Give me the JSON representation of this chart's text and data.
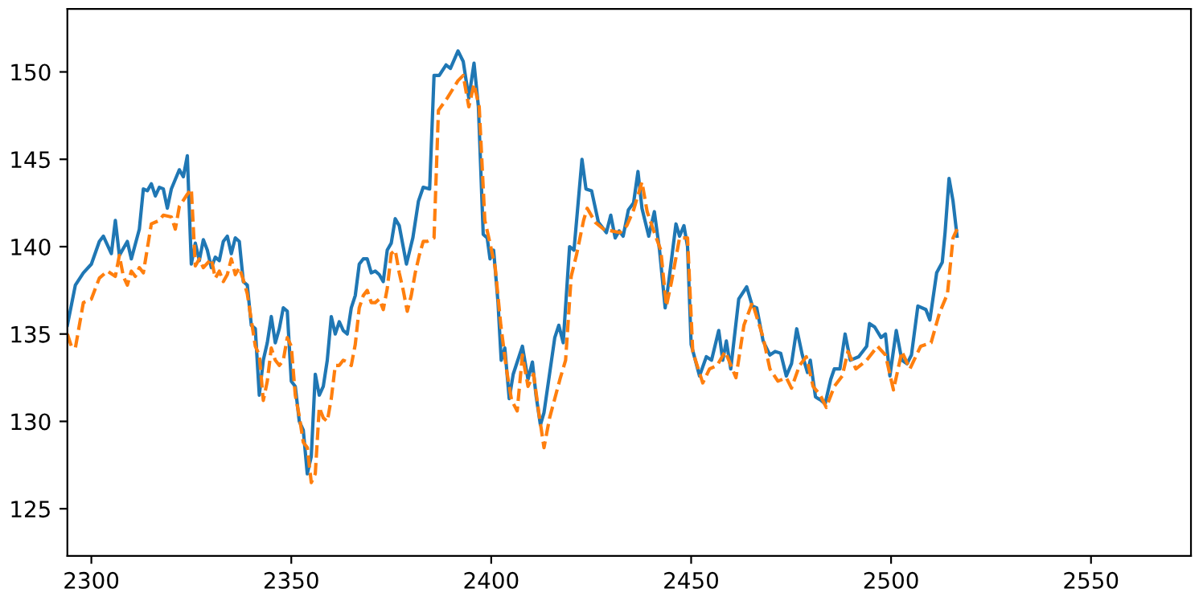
{
  "chart_data": {
    "type": "line",
    "xlim": [
      2294,
      2575
    ],
    "ylim": [
      122.3,
      153.6
    ],
    "xticks": [
      2300,
      2350,
      2400,
      2450,
      2500,
      2550
    ],
    "yticks": [
      125,
      130,
      135,
      140,
      145,
      150
    ],
    "grid": false,
    "marker": "none",
    "series": [
      {
        "color": "#1f77b4",
        "line_style": "solid",
        "x": [
          2294,
          2296,
          2298,
          2300,
          2302,
          2303,
          2305,
          2306,
          2307,
          2309,
          2310,
          2312,
          2313,
          2314,
          2315,
          2316,
          2317,
          2318,
          2319,
          2320,
          2322,
          2323,
          2324,
          2325,
          2326,
          2327,
          2328,
          2329,
          2330,
          2331,
          2332,
          2333,
          2334,
          2335,
          2336,
          2337,
          2338,
          2339,
          2340,
          2341,
          2342,
          2343,
          2344,
          2345,
          2346,
          2347,
          2348,
          2349,
          2350,
          2351,
          2352,
          2353,
          2354,
          2355,
          2356,
          2357,
          2358,
          2359,
          2360,
          2361,
          2362,
          2363,
          2364,
          2365,
          2366,
          2367,
          2368,
          2369,
          2370,
          2371,
          2372,
          2373,
          2374,
          2375,
          2376,
          2377,
          2378.8,
          2380.4,
          2381.8,
          2383,
          2384.6,
          2385.7,
          2387,
          2388.7,
          2389.8,
          2391.7,
          2393,
          2394.4,
          2395.7,
          2396.8,
          2398,
          2399,
          2399.7,
          2400.6,
          2401.7,
          2402.5,
          2403.4,
          2404.5,
          2405.5,
          2407.8,
          2409.2,
          2410.3,
          2411.2,
          2412.3,
          2413.2,
          2415.9,
          2416.9,
          2418,
          2419.6,
          2420.7,
          2422.7,
          2423.7,
          2425.1,
          2426.8,
          2428.8,
          2429.9,
          2431,
          2432,
          2433,
          2434.3,
          2435.6,
          2436.7,
          2437.7,
          2439.4,
          2440.8,
          2442.1,
          2443.5,
          2444.4,
          2446.2,
          2447.1,
          2448.2,
          2449.1,
          2450,
          2452.1,
          2453.8,
          2455.1,
          2456.9,
          2457.9,
          2458.8,
          2459.9,
          2461.9,
          2463.9,
          2465.3,
          2466.4,
          2468,
          2469.7,
          2471,
          2472.4,
          2473.8,
          2475.1,
          2476.4,
          2477.8,
          2479.1,
          2479.8,
          2481.1,
          2482.5,
          2483.5,
          2484.9,
          2485.8,
          2487.2,
          2488.5,
          2489.8,
          2491.9,
          2493.9,
          2494.6,
          2495.9,
          2497.5,
          2498.6,
          2499.7,
          2501.3,
          2502.7,
          2504,
          2505.1,
          2506.7,
          2508.7,
          2509.7,
          2511.4,
          2512.8,
          2513.5,
          2514.5,
          2515.5,
          2516.5
        ],
        "values": [
          135.5,
          137.8,
          138.5,
          139,
          140.3,
          140.6,
          139.6,
          141.5,
          139.5,
          140.3,
          139.3,
          141,
          143.3,
          143.2,
          143.6,
          142.9,
          143.4,
          143.3,
          142.2,
          143.3,
          144.4,
          144,
          145.2,
          139,
          140.2,
          139.2,
          140.4,
          139.8,
          138.8,
          139.4,
          139.2,
          140.3,
          140.6,
          139.6,
          140.5,
          140.3,
          138,
          137.8,
          135.5,
          135.3,
          131.5,
          133.5,
          134.5,
          136,
          134.5,
          135.3,
          136.5,
          136.3,
          132.3,
          132,
          130,
          129.5,
          127,
          128,
          132.7,
          131.5,
          132,
          133.5,
          136,
          135,
          135.7,
          135.2,
          135,
          136.5,
          137.2,
          139,
          139.3,
          139.3,
          138.5,
          138.6,
          138.4,
          138,
          139.8,
          140.2,
          141.6,
          141.2,
          139,
          140.5,
          142.6,
          143.4,
          143.3,
          149.8,
          149.8,
          150.4,
          150.2,
          151.2,
          150.6,
          148.5,
          150.5,
          148,
          140.7,
          140.5,
          139.3,
          139.8,
          136.8,
          133.5,
          134.2,
          131.3,
          132.7,
          134.3,
          132.4,
          133.4,
          131.5,
          129.8,
          130.5,
          134.8,
          135.5,
          134.5,
          140,
          139.8,
          145,
          143.3,
          143.2,
          141.4,
          140.8,
          141.8,
          140.5,
          140.9,
          140.6,
          142.1,
          142.5,
          144.3,
          142.2,
          140.6,
          142,
          139.8,
          136.5,
          138,
          141.3,
          140.6,
          141.2,
          140,
          134.4,
          132.6,
          133.7,
          133.5,
          135.2,
          133.5,
          134.6,
          133,
          137,
          137.7,
          136.6,
          136.5,
          134.6,
          133.8,
          134,
          133.9,
          132.6,
          133.3,
          135.3,
          133.8,
          132.8,
          133.5,
          131.4,
          131.2,
          131,
          132.4,
          133,
          133,
          135,
          133.5,
          133.7,
          134.3,
          135.6,
          135.4,
          134.8,
          135,
          132.6,
          135.2,
          133.5,
          133.3,
          133.8,
          136.6,
          136.4,
          135.8,
          138.5,
          139.1,
          140.8,
          143.9,
          142.6,
          140.6
        ]
      },
      {
        "color": "#ff7f0e",
        "line_style": "dashed",
        "x": [
          2294,
          2295,
          2296,
          2298,
          2300,
          2302,
          2304,
          2306,
          2307,
          2308,
          2309,
          2310,
          2311,
          2312,
          2313,
          2315,
          2317,
          2318,
          2320,
          2321,
          2322,
          2324,
          2325,
          2326,
          2327,
          2328,
          2330,
          2331,
          2332,
          2333,
          2334,
          2335,
          2336,
          2337,
          2338,
          2339,
          2341,
          2342,
          2343,
          2344,
          2345,
          2346,
          2347,
          2348,
          2349,
          2350,
          2351,
          2352,
          2353,
          2354,
          2355,
          2356,
          2357,
          2358,
          2359,
          2360,
          2361,
          2362,
          2363,
          2364,
          2365,
          2366,
          2367,
          2368,
          2369,
          2370,
          2371,
          2372,
          2373,
          2374,
          2375,
          2376,
          2377,
          2378,
          2379,
          2380,
          2381,
          2382,
          2383,
          2384,
          2385.7,
          2386.8,
          2389,
          2391.7,
          2393,
          2394.4,
          2395.7,
          2397,
          2398.4,
          2399.7,
          2401,
          2402.4,
          2403.8,
          2405.1,
          2406.5,
          2407.8,
          2409.2,
          2410.6,
          2411.9,
          2413.2,
          2414.6,
          2417.3,
          2418.6,
          2420,
          2421.3,
          2423.1,
          2424,
          2426,
          2428.1,
          2430.1,
          2432.2,
          2433.9,
          2435.6,
          2437.7,
          2439,
          2440.8,
          2442.4,
          2443.8,
          2445.1,
          2447.1,
          2449.1,
          2450.4,
          2452.9,
          2454.6,
          2456.5,
          2458.5,
          2461.2,
          2463.2,
          2465.3,
          2468,
          2469.7,
          2471.7,
          2473.8,
          2475.1,
          2477.1,
          2478.8,
          2480.5,
          2482.3,
          2483.8,
          2485.8,
          2487.8,
          2489.2,
          2491.2,
          2493.9,
          2496.6,
          2498.6,
          2500.6,
          2502.7,
          2504.7,
          2507.4,
          2510,
          2512.1,
          2514.1,
          2515.5,
          2516.5
        ],
        "values": [
          135,
          134.3,
          134.2,
          136.8,
          137,
          138.2,
          138.6,
          138.3,
          139.5,
          138.3,
          137.8,
          138.6,
          138.3,
          138.8,
          138.5,
          141.3,
          141.5,
          141.8,
          141.7,
          141,
          142.3,
          143,
          143.3,
          138.9,
          139.3,
          138.8,
          139.3,
          138.2,
          138.6,
          138,
          138.4,
          139.3,
          138.4,
          138.8,
          138.1,
          137.3,
          134.3,
          133.8,
          131.2,
          132.3,
          134.2,
          133.5,
          133.2,
          133.5,
          134.8,
          134.3,
          131.5,
          130.3,
          128.8,
          128.5,
          126.5,
          127,
          130.8,
          130.2,
          130,
          131.3,
          133.2,
          133.2,
          133.5,
          133.4,
          133.2,
          134.4,
          136.5,
          137.2,
          137.5,
          136.8,
          136.8,
          137,
          136.4,
          137.6,
          139.6,
          139.8,
          138.5,
          137.5,
          136.3,
          137.2,
          138.5,
          139.5,
          140.3,
          140.3,
          140.5,
          147.8,
          148.5,
          149.5,
          149.8,
          148,
          149.3,
          148,
          141.5,
          140.2,
          138.8,
          135.5,
          133,
          131.2,
          130.6,
          133.8,
          132,
          132.7,
          130.5,
          128.5,
          130.2,
          132.5,
          133.5,
          138.3,
          139.5,
          141.5,
          142.2,
          141.4,
          141,
          140.9,
          140.8,
          141.2,
          142.1,
          143.7,
          142,
          140.8,
          139.8,
          136.6,
          138,
          140.5,
          140.5,
          134,
          132.2,
          133,
          133.2,
          134,
          132.5,
          135.5,
          136.8,
          134.8,
          133,
          132.3,
          132.5,
          131.9,
          133.2,
          133.7,
          132,
          131.5,
          130.8,
          132,
          132.6,
          134,
          133,
          133.5,
          134.3,
          133.8,
          131.8,
          134,
          133,
          134.3,
          134.5,
          136.2,
          137.3,
          140.5,
          141
        ]
      }
    ]
  }
}
